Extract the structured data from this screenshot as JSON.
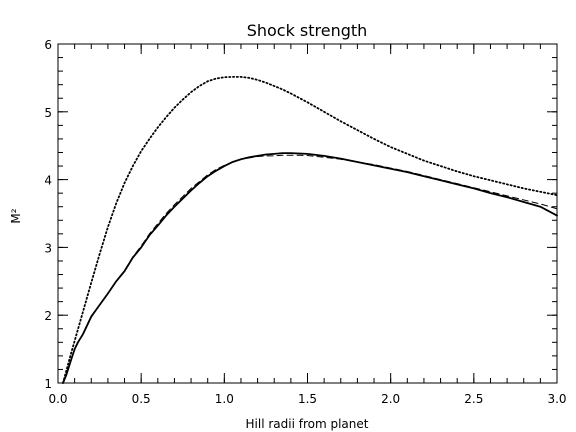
{
  "chart_data": {
    "type": "line",
    "title": "Shock strength",
    "xlabel": "Hill radii from planet",
    "ylabel": "M²",
    "xlim": [
      0.0,
      3.0
    ],
    "ylim": [
      1,
      6
    ],
    "x_ticks": [
      0.0,
      0.5,
      1.0,
      1.5,
      2.0,
      2.5,
      3.0
    ],
    "x_tick_labels": [
      "0.0",
      "0.5",
      "1.0",
      "1.5",
      "2.0",
      "2.5",
      "3.0"
    ],
    "y_ticks": [
      1,
      2,
      3,
      4,
      5,
      6
    ],
    "y_tick_labels": [
      "1",
      "2",
      "3",
      "4",
      "5",
      "6"
    ],
    "grid": false,
    "legend": "none",
    "series": [
      {
        "style": "dotted",
        "color": "#000000",
        "x": [
          0.03,
          0.05,
          0.08,
          0.1,
          0.15,
          0.2,
          0.25,
          0.3,
          0.35,
          0.4,
          0.45,
          0.5,
          0.55,
          0.6,
          0.65,
          0.7,
          0.75,
          0.8,
          0.85,
          0.9,
          0.95,
          1.0,
          1.05,
          1.1,
          1.15,
          1.2,
          1.25,
          1.3,
          1.35,
          1.4,
          1.5,
          1.6,
          1.7,
          1.8,
          1.9,
          2.0,
          2.1,
          2.2,
          2.3,
          2.4,
          2.5,
          2.6,
          2.7,
          2.8,
          2.9,
          3.0
        ],
        "y": [
          1.0,
          1.18,
          1.45,
          1.62,
          2.05,
          2.48,
          2.9,
          3.3,
          3.65,
          3.95,
          4.2,
          4.42,
          4.6,
          4.77,
          4.92,
          5.06,
          5.18,
          5.29,
          5.38,
          5.45,
          5.49,
          5.51,
          5.515,
          5.515,
          5.5,
          5.47,
          5.43,
          5.38,
          5.33,
          5.27,
          5.14,
          5.0,
          4.86,
          4.73,
          4.6,
          4.48,
          4.38,
          4.28,
          4.2,
          4.12,
          4.05,
          3.99,
          3.93,
          3.87,
          3.82,
          3.77
        ]
      },
      {
        "style": "solid",
        "color": "#000000",
        "x": [
          0.03,
          0.05,
          0.08,
          0.1,
          0.12,
          0.15,
          0.2,
          0.25,
          0.3,
          0.35,
          0.4,
          0.45,
          0.5,
          0.55,
          0.6,
          0.65,
          0.7,
          0.75,
          0.8,
          0.85,
          0.9,
          0.95,
          1.0,
          1.05,
          1.1,
          1.15,
          1.2,
          1.25,
          1.3,
          1.35,
          1.4,
          1.45,
          1.5,
          1.6,
          1.7,
          1.8,
          1.9,
          2.0,
          2.1,
          2.2,
          2.3,
          2.4,
          2.5,
          2.6,
          2.7,
          2.8,
          2.9,
          3.0
        ],
        "y": [
          1.0,
          1.12,
          1.35,
          1.5,
          1.6,
          1.72,
          1.98,
          2.15,
          2.32,
          2.5,
          2.65,
          2.85,
          3.0,
          3.18,
          3.32,
          3.47,
          3.6,
          3.72,
          3.84,
          3.95,
          4.05,
          4.13,
          4.2,
          4.26,
          4.3,
          4.33,
          4.35,
          4.37,
          4.38,
          4.39,
          4.39,
          4.385,
          4.38,
          4.35,
          4.31,
          4.26,
          4.21,
          4.16,
          4.11,
          4.05,
          3.99,
          3.93,
          3.87,
          3.8,
          3.74,
          3.67,
          3.6,
          3.47
        ]
      },
      {
        "style": "dashed",
        "color": "#000000",
        "x": [
          0.03,
          0.05,
          0.08,
          0.1,
          0.12,
          0.15,
          0.2,
          0.25,
          0.3,
          0.35,
          0.4,
          0.45,
          0.5,
          0.55,
          0.6,
          0.65,
          0.7,
          0.75,
          0.8,
          0.85,
          0.9,
          0.95,
          1.0,
          1.05,
          1.1,
          1.15,
          1.2,
          1.25,
          1.3,
          1.35,
          1.4,
          1.45,
          1.5,
          1.6,
          1.7,
          1.8,
          1.9,
          2.0,
          2.1,
          2.2,
          2.3,
          2.4,
          2.5,
          2.6,
          2.7,
          2.8,
          2.9,
          3.0
        ],
        "y": [
          1.0,
          1.12,
          1.35,
          1.5,
          1.6,
          1.72,
          1.97,
          2.15,
          2.32,
          2.5,
          2.66,
          2.86,
          3.02,
          3.2,
          3.35,
          3.5,
          3.63,
          3.75,
          3.87,
          3.97,
          4.07,
          4.15,
          4.21,
          4.26,
          4.3,
          4.32,
          4.34,
          4.35,
          4.35,
          4.36,
          4.36,
          4.36,
          4.355,
          4.33,
          4.3,
          4.26,
          4.22,
          4.17,
          4.12,
          4.06,
          4.0,
          3.94,
          3.88,
          3.82,
          3.76,
          3.7,
          3.64,
          3.57
        ]
      }
    ]
  }
}
